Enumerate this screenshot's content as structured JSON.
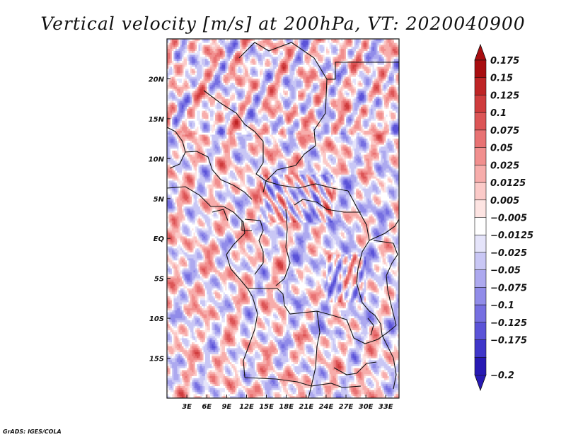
{
  "chart_data": {
    "type": "heatmap",
    "title": "Vertical velocity [m/s] at 200hPa, VT: 2020040900",
    "variable": "Vertical velocity",
    "units": "m/s",
    "level": "200hPa",
    "valid_time": "2020040900",
    "x_range": [
      0,
      35
    ],
    "y_range": [
      -20,
      25
    ],
    "x_ticks": [
      {
        "value": 3,
        "label": "3E"
      },
      {
        "value": 6,
        "label": "6E"
      },
      {
        "value": 9,
        "label": "9E"
      },
      {
        "value": 12,
        "label": "12E"
      },
      {
        "value": 15,
        "label": "15E"
      },
      {
        "value": 18,
        "label": "18E"
      },
      {
        "value": 21,
        "label": "21E"
      },
      {
        "value": 24,
        "label": "24E"
      },
      {
        "value": 27,
        "label": "27E"
      },
      {
        "value": 30,
        "label": "30E"
      },
      {
        "value": 33,
        "label": "33E"
      }
    ],
    "y_ticks": [
      {
        "value": 20,
        "label": "20N"
      },
      {
        "value": 15,
        "label": "15N"
      },
      {
        "value": 10,
        "label": "10N"
      },
      {
        "value": 5,
        "label": "5N"
      },
      {
        "value": 0,
        "label": "EQ"
      },
      {
        "value": -5,
        "label": "5S"
      },
      {
        "value": -10,
        "label": "10S"
      },
      {
        "value": -15,
        "label": "15S"
      }
    ],
    "colorbar": {
      "levels": [
        {
          "label": "0.175",
          "value": 0.175,
          "color": "#a80d10"
        },
        {
          "label": "0.15",
          "value": 0.15,
          "color": "#be2425"
        },
        {
          "label": "0.125",
          "value": 0.125,
          "color": "#cf3c3d"
        },
        {
          "label": "0.1",
          "value": 0.1,
          "color": "#dc5556"
        },
        {
          "label": "0.075",
          "value": 0.075,
          "color": "#e87273"
        },
        {
          "label": "0.05",
          "value": 0.05,
          "color": "#f18f8e"
        },
        {
          "label": "0.025",
          "value": 0.025,
          "color": "#f7adab"
        },
        {
          "label": "0.0125",
          "value": 0.0125,
          "color": "#fbcac8"
        },
        {
          "label": "0.005",
          "value": 0.005,
          "color": "#fde4e2"
        },
        {
          "label": "−0.005",
          "value": -0.005,
          "color": "#ffffff"
        },
        {
          "label": "−0.0125",
          "value": -0.0125,
          "color": "#e5e4fa"
        },
        {
          "label": "−0.025",
          "value": -0.025,
          "color": "#c9c7f5"
        },
        {
          "label": "−0.05",
          "value": -0.05,
          "color": "#ada9ef"
        },
        {
          "label": "−0.075",
          "value": -0.075,
          "color": "#918ce9"
        },
        {
          "label": "−0.1",
          "value": -0.1,
          "color": "#766fe1"
        },
        {
          "label": "−0.125",
          "value": -0.125,
          "color": "#5b53d8"
        },
        {
          "label": "−0.175",
          "value": -0.175,
          "color": "#3f36c9"
        },
        {
          "label": "−0.2",
          "value": -0.2,
          "color": "#2719b3"
        }
      ],
      "top_extension_color": "#a80d10",
      "bottom_extension_color": "#2719b3",
      "near_zero_color": "#ffffff"
    },
    "credit": "GrADS: IGES/COLA"
  }
}
